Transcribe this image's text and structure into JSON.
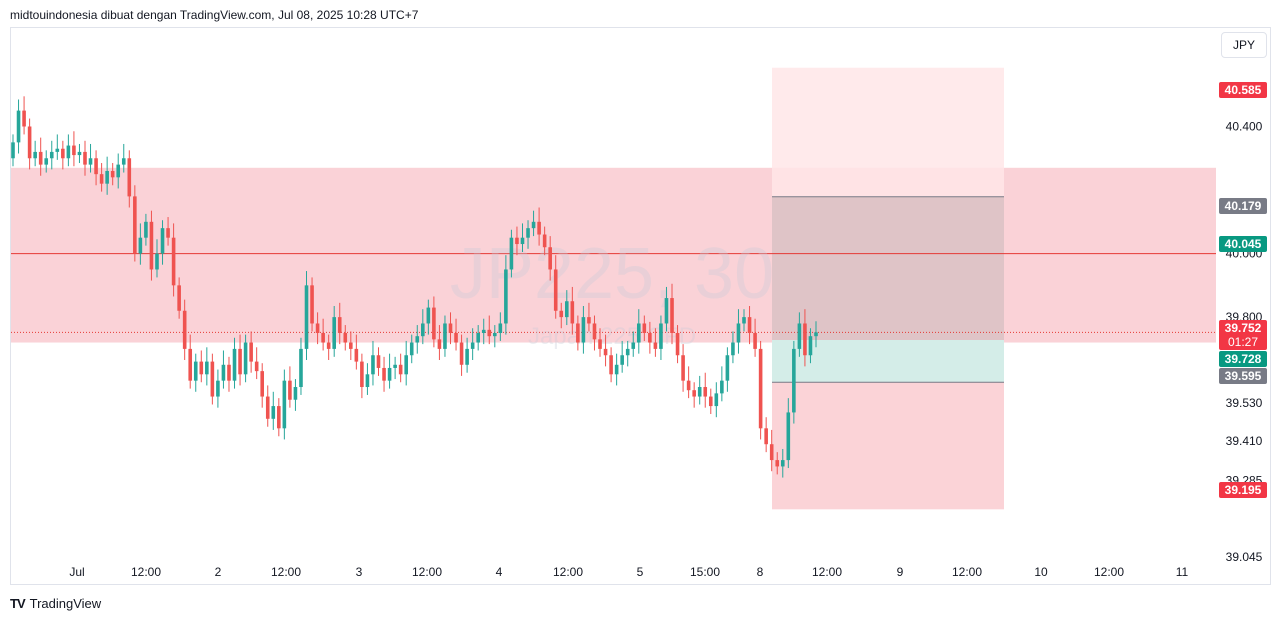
{
  "header": {
    "title": "midtouindonesia dibuat dengan TradingView.com, Jul 08, 2025 10:28 UTC+7"
  },
  "currency_button": "JPY",
  "footer": {
    "brand": "TradingView",
    "logo": "TV"
  },
  "watermark": {
    "symbol": "JP225, 30",
    "name": "Japan 225 CFD"
  },
  "colors": {
    "up": "#26a69a",
    "down": "#ef5350",
    "zone": "#f8c3c9",
    "target": "#ffe6e7",
    "risk_stop": "#fbd3d7",
    "entry_green": "#d4ede8",
    "level_line": "#e53935",
    "badge_red": "#f23645",
    "badge_green": "#089981",
    "badge_gray": "#787b86"
  },
  "chart_data": {
    "type": "candlestick",
    "interval": "30m",
    "symbol": "JP225",
    "ylim": [
      38.96,
      40.71
    ],
    "price_axis_ticks": [
      "40.400",
      "40.000",
      "39.800",
      "39.530",
      "39.410",
      "39.285",
      "39.045"
    ],
    "time_axis_ticks": [
      "Jul",
      "12:00",
      "2",
      "12:00",
      "3",
      "12:00",
      "4",
      "12:00",
      "5",
      "15:00",
      "8",
      "12:00",
      "9",
      "12:00",
      "10",
      "12:00",
      "11"
    ],
    "resistance_zone": {
      "top": 40.27,
      "bottom": 39.72
    },
    "resistance_level": 40.0,
    "current_price": 39.752,
    "countdown": "01:27",
    "position": {
      "target": 40.585,
      "level_1": 40.179,
      "level_2": 40.045,
      "entry": 39.728,
      "level_3": 39.595,
      "stop": 39.195
    },
    "price_badges": [
      {
        "value": "40.585",
        "color": "red"
      },
      {
        "value": "40.179",
        "color": "gray"
      },
      {
        "value": "40.045",
        "color": "green"
      },
      {
        "value": "39.752",
        "color": "red",
        "sub": "01:27"
      },
      {
        "value": "39.728",
        "color": "green"
      },
      {
        "value": "39.595",
        "color": "gray"
      },
      {
        "value": "39.195",
        "color": "red"
      }
    ],
    "closes": [
      40.35,
      40.45,
      40.4,
      40.3,
      40.32,
      40.28,
      40.3,
      40.32,
      40.33,
      40.3,
      40.34,
      40.31,
      40.32,
      40.28,
      40.3,
      40.25,
      40.22,
      40.26,
      40.24,
      40.28,
      40.3,
      40.18,
      40.0,
      40.05,
      40.1,
      39.95,
      40.0,
      40.08,
      40.05,
      39.9,
      39.82,
      39.7,
      39.6,
      39.66,
      39.62,
      39.66,
      39.55,
      39.6,
      39.65,
      39.6,
      39.7,
      39.62,
      39.72,
      39.66,
      39.63,
      39.55,
      39.48,
      39.52,
      39.45,
      39.6,
      39.54,
      39.58,
      39.7,
      39.9,
      39.78,
      39.75,
      39.72,
      39.7,
      39.8,
      39.75,
      39.72,
      39.7,
      39.66,
      39.58,
      39.62,
      39.68,
      39.64,
      39.6,
      39.64,
      39.65,
      39.62,
      39.68,
      39.72,
      39.74,
      39.78,
      39.83,
      39.73,
      39.7,
      39.78,
      39.75,
      39.72,
      39.65,
      39.7,
      39.72,
      39.75,
      39.76,
      39.74,
      39.75,
      39.78,
      39.95,
      40.05,
      40.03,
      40.05,
      40.08,
      40.1,
      40.06,
      40.02,
      39.95,
      39.82,
      39.8,
      39.85,
      39.78,
      39.72,
      39.8,
      39.78,
      39.73,
      39.7,
      39.68,
      39.62,
      39.65,
      39.68,
      39.7,
      39.72,
      39.78,
      39.75,
      39.72,
      39.7,
      39.78,
      39.86,
      39.75,
      39.68,
      39.6,
      39.57,
      39.55,
      39.58,
      39.55,
      39.52,
      39.56,
      39.6,
      39.68,
      39.72,
      39.78,
      39.8,
      39.75,
      39.7,
      39.45,
      39.4,
      39.35,
      39.33,
      39.35,
      39.5,
      39.7,
      39.78,
      39.68,
      39.74,
      39.752
    ]
  }
}
